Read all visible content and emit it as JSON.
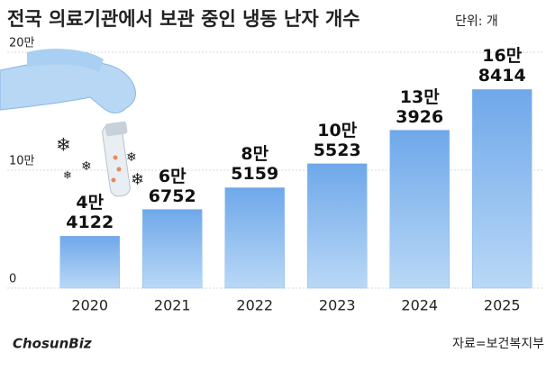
{
  "chart_data": {
    "type": "bar",
    "title": "전국 의료기관에서 보관 중인 냉동 난자 개수",
    "unit": "단위: 개",
    "source": "자료=보건복지부",
    "logo": "ChosunBiz",
    "categories": [
      "2020",
      "2021",
      "2022",
      "2023",
      "2024",
      "2025"
    ],
    "values": [
      44122,
      66752,
      85159,
      105523,
      133926,
      168414
    ],
    "value_labels": [
      "4만\n4122",
      "6만\n6752",
      "8만\n5159",
      "10만\n5523",
      "13만\n3926",
      "16만\n8414"
    ],
    "color": "#8bbcef",
    "ylim": [
      0,
      200000
    ],
    "yticks": [
      0,
      {
        "value": 100000,
        "label": "10만"
      },
      {
        "value": 200000,
        "label": "20만"
      }
    ],
    "grid": true
  }
}
